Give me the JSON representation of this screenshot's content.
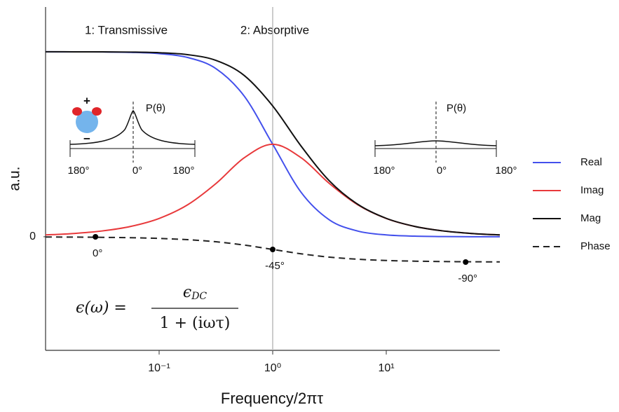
{
  "chart_data": {
    "type": "line",
    "x_label": "Frequency/2πτ",
    "y_label": "a.u.",
    "xscale": "log",
    "xlim": [
      0.01,
      100
    ],
    "xticks": [
      {
        "value": 0.1,
        "label": "10⁻¹"
      },
      {
        "value": 1,
        "label": "10⁰"
      },
      {
        "value": 10,
        "label": "10¹"
      }
    ],
    "ylim": [
      -0.614,
      1.242
    ],
    "yticks": [
      0
    ],
    "y2lim": [
      -405,
      820
    ],
    "legend": "right",
    "x": [
      0.01,
      0.017783,
      0.031623,
      0.056234,
      0.1,
      0.17783,
      0.31623,
      0.56234,
      1,
      1.7783,
      3.1623,
      5.6234,
      10,
      17.783,
      31.623,
      56.234,
      100
    ],
    "series": [
      {
        "name": "Real",
        "color": "#4350ec",
        "values": [
          0.9999,
          0.9997,
          0.999,
          0.9968,
          0.9901,
          0.9693,
          0.9091,
          0.7597,
          0.5,
          0.2403,
          0.0909,
          0.0307,
          0.0099,
          0.0032,
          0.001,
          0.0003,
          0.0001
        ]
      },
      {
        "name": "Imag",
        "color": "#e8393b",
        "values": [
          0.01,
          0.0178,
          0.0316,
          0.0561,
          0.099,
          0.1724,
          0.2875,
          0.4272,
          0.5,
          0.4272,
          0.2875,
          0.1724,
          0.099,
          0.0561,
          0.0316,
          0.0178,
          0.01
        ]
      },
      {
        "name": "Mag",
        "color": "#111111",
        "values": [
          1.0,
          0.9998,
          0.9995,
          0.9984,
          0.995,
          0.9845,
          0.9535,
          0.8716,
          0.7071,
          0.4902,
          0.3015,
          0.1752,
          0.0995,
          0.0561,
          0.0316,
          0.0178,
          0.01
        ]
      },
      {
        "name": "Phase",
        "color": "#222222",
        "dashed": true,
        "axis": "y2",
        "values": [
          -0.57,
          -1.02,
          -1.81,
          -3.22,
          -5.71,
          -10.08,
          -17.55,
          -29.36,
          -45,
          -60.64,
          -72.45,
          -79.92,
          -84.29,
          -86.78,
          -88.19,
          -88.98,
          -89.43
        ]
      }
    ],
    "markers": {
      "axis": "y2",
      "x": [
        0.0275,
        1,
        50
      ],
      "values": [
        0,
        -45,
        -90
      ],
      "value_labels": [
        "0°",
        "-45°",
        "-90°"
      ]
    },
    "vline": 1,
    "regions": [
      "1: Transmissive",
      "2: Absorptive"
    ],
    "insets": [
      {
        "label": "P(θ)",
        "tick_labels": [
          "180°",
          "0°",
          "180°"
        ],
        "dipole_labels": [
          "+",
          "−"
        ]
      },
      {
        "label": "P(θ)",
        "tick_labels": [
          "180°",
          "0°",
          "180°"
        ]
      }
    ],
    "formula": {
      "lhs": "ϵ(ω) =",
      "numerator": "ϵ",
      "numerator_sub": "DC",
      "denominator": "1 + (iωτ)"
    }
  }
}
